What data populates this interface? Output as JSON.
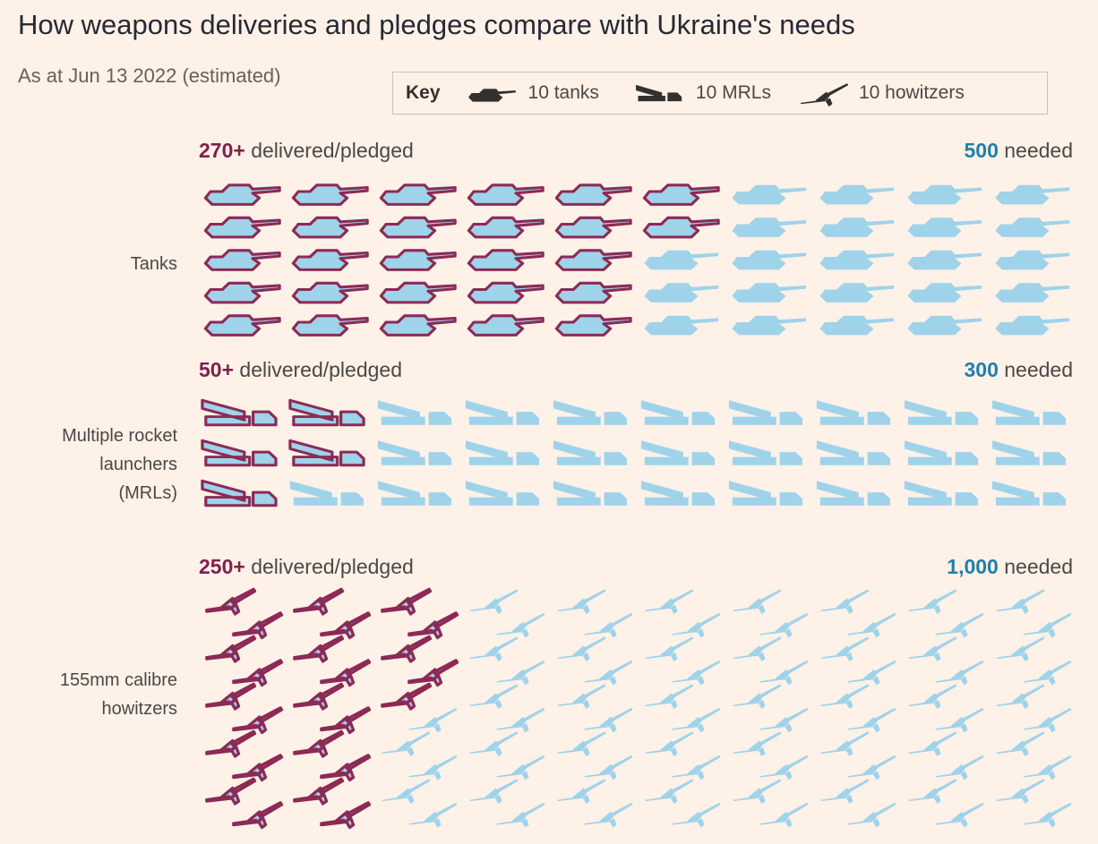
{
  "title": "How weapons deliveries and pledges compare with Ukraine's needs",
  "subtitle": "As at Jun 13 2022 (estimated)",
  "key": {
    "title": "Key",
    "items": [
      {
        "icon": "tank-icon",
        "label": "10 tanks"
      },
      {
        "icon": "mrl-icon",
        "label": "10 MRLs"
      },
      {
        "icon": "howitzer-icon",
        "label": "10 howitzers"
      }
    ]
  },
  "colors": {
    "delivered_outline": "#8c2a55",
    "fill": "#9fd3ea",
    "delivered_number": "#80204c",
    "needed_number": "#1f7fac",
    "background": "#fdf1e8"
  },
  "chart_data": {
    "type": "pictogram",
    "unit": "10 per icon",
    "categories": [
      {
        "key": "tanks",
        "label": "Tanks",
        "label_lines": [
          "Tanks"
        ],
        "delivered_value": "270+",
        "delivered_text": "delivered/pledged",
        "needed_value": "500",
        "needed_text": "needed",
        "delivered_icons": 27,
        "needed_icons": 50
      },
      {
        "key": "mrls",
        "label": "Multiple rocket launchers (MRLs)",
        "label_lines": [
          "Multiple rocket",
          "launchers",
          "(MRLs)"
        ],
        "delivered_value": "50+",
        "delivered_text": "delivered/pledged",
        "needed_value": "300",
        "needed_text": "needed",
        "delivered_icons": 5,
        "needed_icons": 30
      },
      {
        "key": "howitzers",
        "label": "155mm calibre howitzers",
        "label_lines": [
          "155mm calibre",
          "howitzers"
        ],
        "delivered_value": "250+",
        "delivered_text": "delivered/pledged",
        "needed_value": "1,000",
        "needed_text": "needed",
        "delivered_icons": 25,
        "needed_icons": 100
      }
    ]
  }
}
